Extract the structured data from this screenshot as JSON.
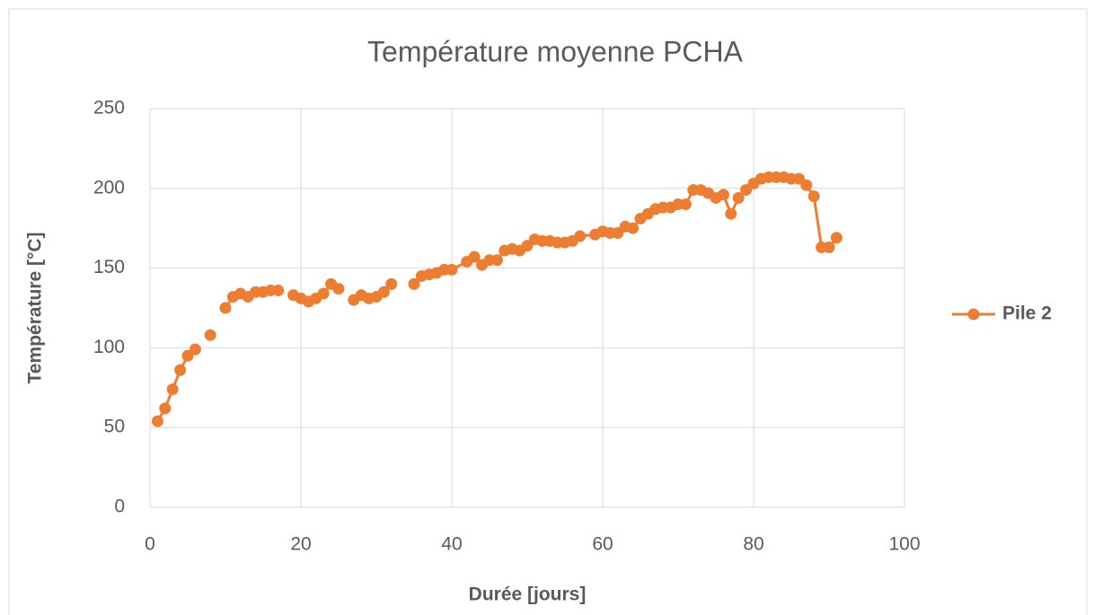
{
  "chart_data": {
    "type": "line",
    "title": "Température moyenne PCHA",
    "x_label": "Durée [jours]",
    "y_label": "Température [°C]",
    "x": [
      1,
      2,
      3,
      4,
      5,
      6,
      null,
      8,
      null,
      10,
      11,
      12,
      13,
      14,
      15,
      16,
      17,
      null,
      19,
      20,
      21,
      22,
      23,
      24,
      25,
      null,
      27,
      28,
      29,
      30,
      31,
      32,
      null,
      35,
      36,
      37,
      38,
      39,
      40,
      42,
      43,
      44,
      45,
      46,
      47,
      48,
      49,
      50,
      51,
      52,
      53,
      54,
      55,
      56,
      57,
      59,
      60,
      61,
      62,
      63,
      64,
      65,
      66,
      67,
      68,
      69,
      70,
      71,
      72,
      73,
      74,
      75,
      76,
      77,
      78,
      79,
      80,
      81,
      82,
      83,
      84,
      85,
      86,
      87,
      88,
      89,
      90,
      91
    ],
    "series": [
      {
        "name": "Pile 2",
        "color": "#ed7d31",
        "values": [
          54,
          62,
          74,
          86,
          95,
          99,
          null,
          108,
          null,
          125,
          132,
          134,
          132,
          135,
          135,
          136,
          136,
          null,
          133,
          131,
          129,
          131,
          134,
          140,
          137,
          null,
          130,
          133,
          131,
          132,
          135,
          140,
          null,
          140,
          145,
          146,
          147,
          149,
          149,
          154,
          157,
          152,
          155,
          155,
          161,
          162,
          161,
          164,
          168,
          167,
          167,
          166,
          166,
          167,
          170,
          171,
          173,
          172,
          172,
          176,
          175,
          181,
          184,
          187,
          188,
          188,
          190,
          190,
          199,
          199,
          197,
          194,
          196,
          184,
          194,
          199,
          203,
          206,
          207,
          207,
          207,
          206,
          206,
          202,
          195,
          163,
          163,
          169
        ]
      }
    ],
    "xlim": [
      0,
      100
    ],
    "xticks": [
      0,
      20,
      40,
      60,
      80,
      100
    ],
    "ylim": [
      0,
      250
    ],
    "yticks": [
      0,
      50,
      100,
      150,
      200,
      250
    ],
    "grid": true,
    "legend": "right"
  }
}
